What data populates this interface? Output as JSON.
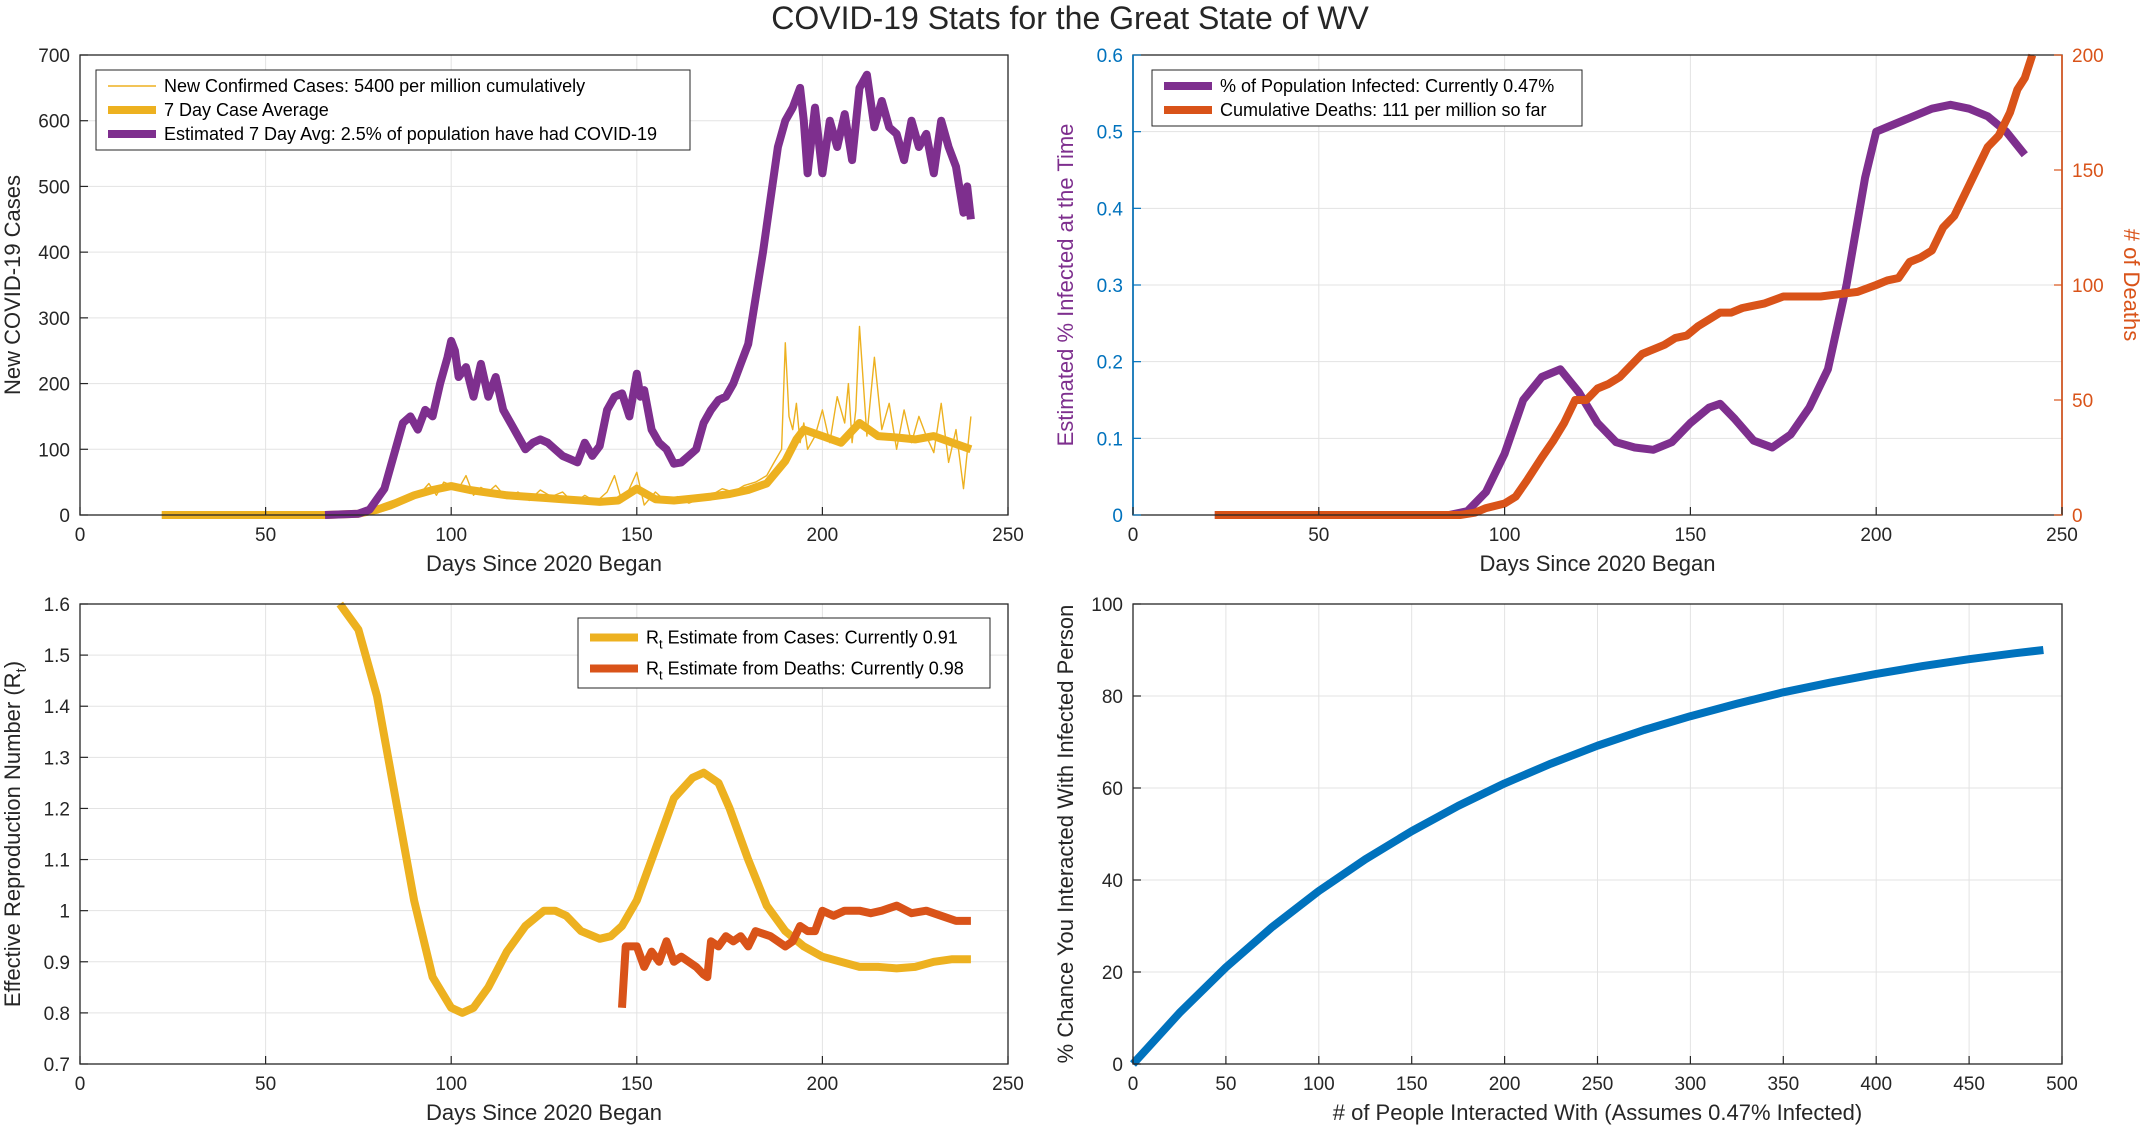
{
  "figure": {
    "title": "COVID-19 Stats for the Great State of WV"
  },
  "colors": {
    "yellow": "#EDB120",
    "purple": "#7E2F8E",
    "orange": "#D95319",
    "blue": "#0072BD",
    "axis_blue": "#0072BD"
  },
  "chart_data": [
    {
      "id": "cases",
      "type": "line",
      "xlabel": "Days Since 2020 Began",
      "ylabel": "New COVID-19 Cases",
      "xlim": [
        0,
        250
      ],
      "ylim": [
        0,
        700
      ],
      "xticks": [
        0,
        50,
        100,
        150,
        200,
        250
      ],
      "yticks": [
        0,
        100,
        200,
        300,
        400,
        500,
        600,
        700
      ],
      "grid": true,
      "legend_position": "top-left",
      "series": [
        {
          "name": "New Confirmed Cases: 5400 per million cumulatively",
          "color": "#EDB120",
          "thin": true,
          "x": [
            22,
            60,
            75,
            80,
            84,
            88,
            90,
            92,
            94,
            96,
            98,
            100,
            102,
            104,
            106,
            108,
            110,
            112,
            115,
            118,
            121,
            124,
            127,
            130,
            133,
            136,
            139,
            142,
            144,
            146,
            148,
            150,
            152,
            155,
            158,
            161,
            164,
            167,
            170,
            173,
            176,
            179,
            182,
            185,
            187,
            189,
            190,
            191,
            192,
            193,
            194,
            195,
            196,
            198,
            200,
            202,
            204,
            206,
            207,
            208,
            209,
            210,
            212,
            214,
            216,
            218,
            220,
            222,
            224,
            226,
            228,
            230,
            232,
            234,
            236,
            238,
            240
          ],
          "y": [
            0,
            0,
            0,
            3,
            10,
            20,
            25,
            35,
            48,
            30,
            50,
            45,
            40,
            60,
            30,
            42,
            35,
            45,
            25,
            35,
            22,
            38,
            28,
            35,
            18,
            30,
            20,
            35,
            60,
            20,
            40,
            65,
            15,
            35,
            20,
            28,
            18,
            25,
            30,
            40,
            35,
            45,
            50,
            60,
            80,
            100,
            262,
            150,
            130,
            170,
            110,
            140,
            100,
            120,
            160,
            110,
            180,
            140,
            200,
            110,
            160,
            287,
            120,
            240,
            130,
            170,
            100,
            160,
            110,
            150,
            120,
            95,
            170,
            80,
            130,
            40,
            150
          ]
        },
        {
          "name": "7 Day Case Average",
          "color": "#EDB120",
          "thin": false,
          "x": [
            22,
            40,
            66,
            75,
            80,
            85,
            90,
            95,
            100,
            105,
            110,
            115,
            120,
            125,
            130,
            135,
            140,
            145,
            150,
            155,
            160,
            165,
            170,
            175,
            180,
            185,
            190,
            193,
            195,
            200,
            205,
            210,
            215,
            220,
            225,
            230,
            235,
            240
          ],
          "y": [
            0,
            0,
            0,
            2,
            8,
            18,
            30,
            38,
            44,
            38,
            34,
            30,
            28,
            26,
            24,
            22,
            20,
            22,
            40,
            24,
            22,
            25,
            28,
            32,
            38,
            48,
            82,
            115,
            130,
            120,
            110,
            140,
            120,
            118,
            115,
            120,
            110,
            100
          ]
        },
        {
          "name": "Estimated 7 Day Avg: 2.5% of population have had COVID-19",
          "color": "#7E2F8E",
          "thin": false,
          "x": [
            66,
            75,
            78,
            82,
            85,
            87,
            89,
            91,
            93,
            95,
            97,
            99,
            100,
            101,
            102,
            104,
            106,
            108,
            110,
            112,
            114,
            116,
            118,
            120,
            122,
            124,
            126,
            128,
            130,
            132,
            134,
            136,
            138,
            140,
            142,
            144,
            146,
            148,
            150,
            151,
            152,
            154,
            156,
            158,
            160,
            162,
            164,
            166,
            168,
            170,
            172,
            174,
            176,
            178,
            180,
            182,
            184,
            186,
            188,
            190,
            192,
            194,
            195,
            196,
            198,
            200,
            202,
            204,
            206,
            208,
            210,
            212,
            214,
            216,
            218,
            220,
            222,
            224,
            226,
            228,
            230,
            232,
            234,
            236,
            238,
            239,
            240
          ],
          "y": [
            0,
            2,
            8,
            40,
            100,
            140,
            150,
            130,
            160,
            150,
            200,
            240,
            265,
            250,
            210,
            225,
            180,
            230,
            180,
            210,
            160,
            140,
            120,
            100,
            110,
            115,
            110,
            100,
            90,
            85,
            80,
            110,
            90,
            105,
            160,
            180,
            185,
            150,
            215,
            180,
            190,
            130,
            110,
            100,
            78,
            80,
            90,
            100,
            140,
            160,
            175,
            180,
            200,
            230,
            260,
            330,
            400,
            480,
            560,
            600,
            620,
            650,
            600,
            520,
            620,
            520,
            600,
            560,
            610,
            540,
            650,
            670,
            590,
            630,
            590,
            580,
            540,
            600,
            560,
            580,
            520,
            600,
            560,
            530,
            460,
            500,
            450
          ]
        }
      ]
    },
    {
      "id": "infected",
      "type": "line",
      "xlabel": "Days Since 2020 Began",
      "ylabel": "Estimated % Infected at the Time",
      "y2label": "# of Deaths",
      "xlim": [
        0,
        250
      ],
      "ylim": [
        0,
        0.6
      ],
      "y2lim": [
        0,
        200
      ],
      "xticks": [
        0,
        50,
        100,
        150,
        200,
        250
      ],
      "yticks": [
        0,
        0.1,
        0.2,
        0.3,
        0.4,
        0.5,
        0.6
      ],
      "y2ticks": [
        0,
        50,
        100,
        150,
        200
      ],
      "grid": true,
      "legend_position": "top-left",
      "series": [
        {
          "name": "% of Population Infected: Currently 0.47%",
          "axis": "left",
          "color": "#7E2F8E",
          "x": [
            22,
            60,
            80,
            85,
            90,
            95,
            100,
            105,
            110,
            115,
            120,
            125,
            130,
            135,
            140,
            145,
            150,
            155,
            158,
            162,
            167,
            172,
            177,
            182,
            187,
            192,
            197,
            200,
            205,
            210,
            215,
            220,
            225,
            230,
            235,
            240
          ],
          "y": [
            0,
            0,
            0,
            0,
            0.005,
            0.03,
            0.08,
            0.15,
            0.18,
            0.19,
            0.16,
            0.12,
            0.095,
            0.088,
            0.085,
            0.095,
            0.12,
            0.14,
            0.145,
            0.125,
            0.097,
            0.088,
            0.105,
            0.14,
            0.19,
            0.3,
            0.44,
            0.5,
            0.51,
            0.52,
            0.53,
            0.535,
            0.53,
            0.52,
            0.5,
            0.47
          ]
        },
        {
          "name": "Cumulative Deaths: 111 per million so far",
          "axis": "right",
          "color": "#D95319",
          "x": [
            22,
            60,
            88,
            92,
            95,
            100,
            103,
            106,
            110,
            113,
            116,
            119,
            122,
            125,
            128,
            131,
            134,
            137,
            140,
            143,
            146,
            149,
            152,
            155,
            158,
            161,
            164,
            167,
            170,
            175,
            180,
            185,
            190,
            195,
            200,
            203,
            206,
            209,
            212,
            215,
            218,
            221,
            224,
            227,
            230,
            233,
            236,
            238,
            240,
            242
          ],
          "y": [
            0,
            0,
            0,
            1,
            3,
            5,
            8,
            15,
            25,
            32,
            40,
            50,
            50,
            55,
            57,
            60,
            65,
            70,
            72,
            74,
            77,
            78,
            82,
            85,
            88,
            88,
            90,
            91,
            92,
            95,
            95,
            95,
            96,
            97,
            100,
            102,
            103,
            110,
            112,
            115,
            125,
            130,
            140,
            150,
            160,
            165,
            175,
            185,
            190,
            200
          ]
        }
      ]
    },
    {
      "id": "rt",
      "type": "line",
      "xlabel": "Days Since 2020 Began",
      "ylabel": "Effective Reproduction Number (R",
      "ylabel_sub": "t",
      "ylabel_close": ")",
      "xlim": [
        0,
        250
      ],
      "ylim": [
        0.7,
        1.6
      ],
      "xticks": [
        0,
        50,
        100,
        150,
        200,
        250
      ],
      "yticks": [
        0.7,
        0.8,
        0.9,
        1,
        1.1,
        1.2,
        1.3,
        1.4,
        1.5,
        1.6
      ],
      "grid": true,
      "legend_position": "top-right",
      "series": [
        {
          "name_prefix": "R",
          "name_sub": "t",
          "name": " Estimate from Cases: Currently 0.91",
          "color": "#EDB120",
          "x": [
            70,
            75,
            80,
            85,
            90,
            95,
            100,
            103,
            106,
            110,
            115,
            120,
            125,
            128,
            131,
            135,
            140,
            143,
            146,
            150,
            155,
            160,
            165,
            168,
            172,
            175,
            180,
            185,
            190,
            195,
            200,
            205,
            210,
            215,
            220,
            225,
            230,
            235,
            240
          ],
          "y": [
            1.6,
            1.55,
            1.42,
            1.22,
            1.02,
            0.87,
            0.81,
            0.8,
            0.81,
            0.85,
            0.92,
            0.97,
            1.0,
            1.0,
            0.99,
            0.96,
            0.945,
            0.95,
            0.97,
            1.02,
            1.12,
            1.22,
            1.26,
            1.27,
            1.25,
            1.2,
            1.1,
            1.01,
            0.96,
            0.93,
            0.91,
            0.9,
            0.89,
            0.89,
            0.887,
            0.89,
            0.9,
            0.905,
            0.905
          ]
        },
        {
          "name_prefix": "R",
          "name_sub": "t",
          "name": " Estimate from Deaths: Currently 0.98",
          "color": "#D95319",
          "x": [
            146,
            147,
            150,
            152,
            154,
            156,
            158,
            160,
            162,
            164,
            166,
            168,
            169,
            170,
            172,
            174,
            176,
            178,
            180,
            182,
            184,
            186,
            188,
            190,
            192,
            194,
            196,
            198,
            200,
            203,
            206,
            210,
            213,
            216,
            220,
            224,
            228,
            232,
            236,
            240
          ],
          "y": [
            0.81,
            0.93,
            0.93,
            0.89,
            0.92,
            0.9,
            0.94,
            0.9,
            0.91,
            0.9,
            0.89,
            0.875,
            0.87,
            0.94,
            0.93,
            0.95,
            0.94,
            0.95,
            0.93,
            0.96,
            0.955,
            0.95,
            0.94,
            0.93,
            0.94,
            0.97,
            0.96,
            0.96,
            1.0,
            0.99,
            1.0,
            1.0,
            0.995,
            1.0,
            1.01,
            0.995,
            1.0,
            0.99,
            0.98,
            0.98
          ]
        }
      ]
    },
    {
      "id": "chance",
      "type": "line",
      "xlabel": "# of People Interacted With (Assumes 0.47% Infected)",
      "ylabel": "% Chance You Interacted With Infected Person",
      "xlim": [
        0,
        500
      ],
      "ylim": [
        0,
        100
      ],
      "xticks": [
        0,
        50,
        100,
        150,
        200,
        250,
        300,
        350,
        400,
        450,
        500
      ],
      "yticks": [
        0,
        20,
        40,
        60,
        80,
        100
      ],
      "grid": true,
      "series": [
        {
          "name": "",
          "color": "#0072BD",
          "x": [
            0,
            25,
            50,
            75,
            100,
            125,
            150,
            175,
            200,
            225,
            250,
            275,
            300,
            325,
            350,
            375,
            400,
            425,
            450,
            475,
            490
          ],
          "y": [
            0,
            11.1,
            21.0,
            29.8,
            37.6,
            44.5,
            50.6,
            56.1,
            61.0,
            65.3,
            69.2,
            72.6,
            75.6,
            78.3,
            80.8,
            82.9,
            84.8,
            86.5,
            88.0,
            89.3,
            90.0
          ]
        }
      ]
    }
  ]
}
